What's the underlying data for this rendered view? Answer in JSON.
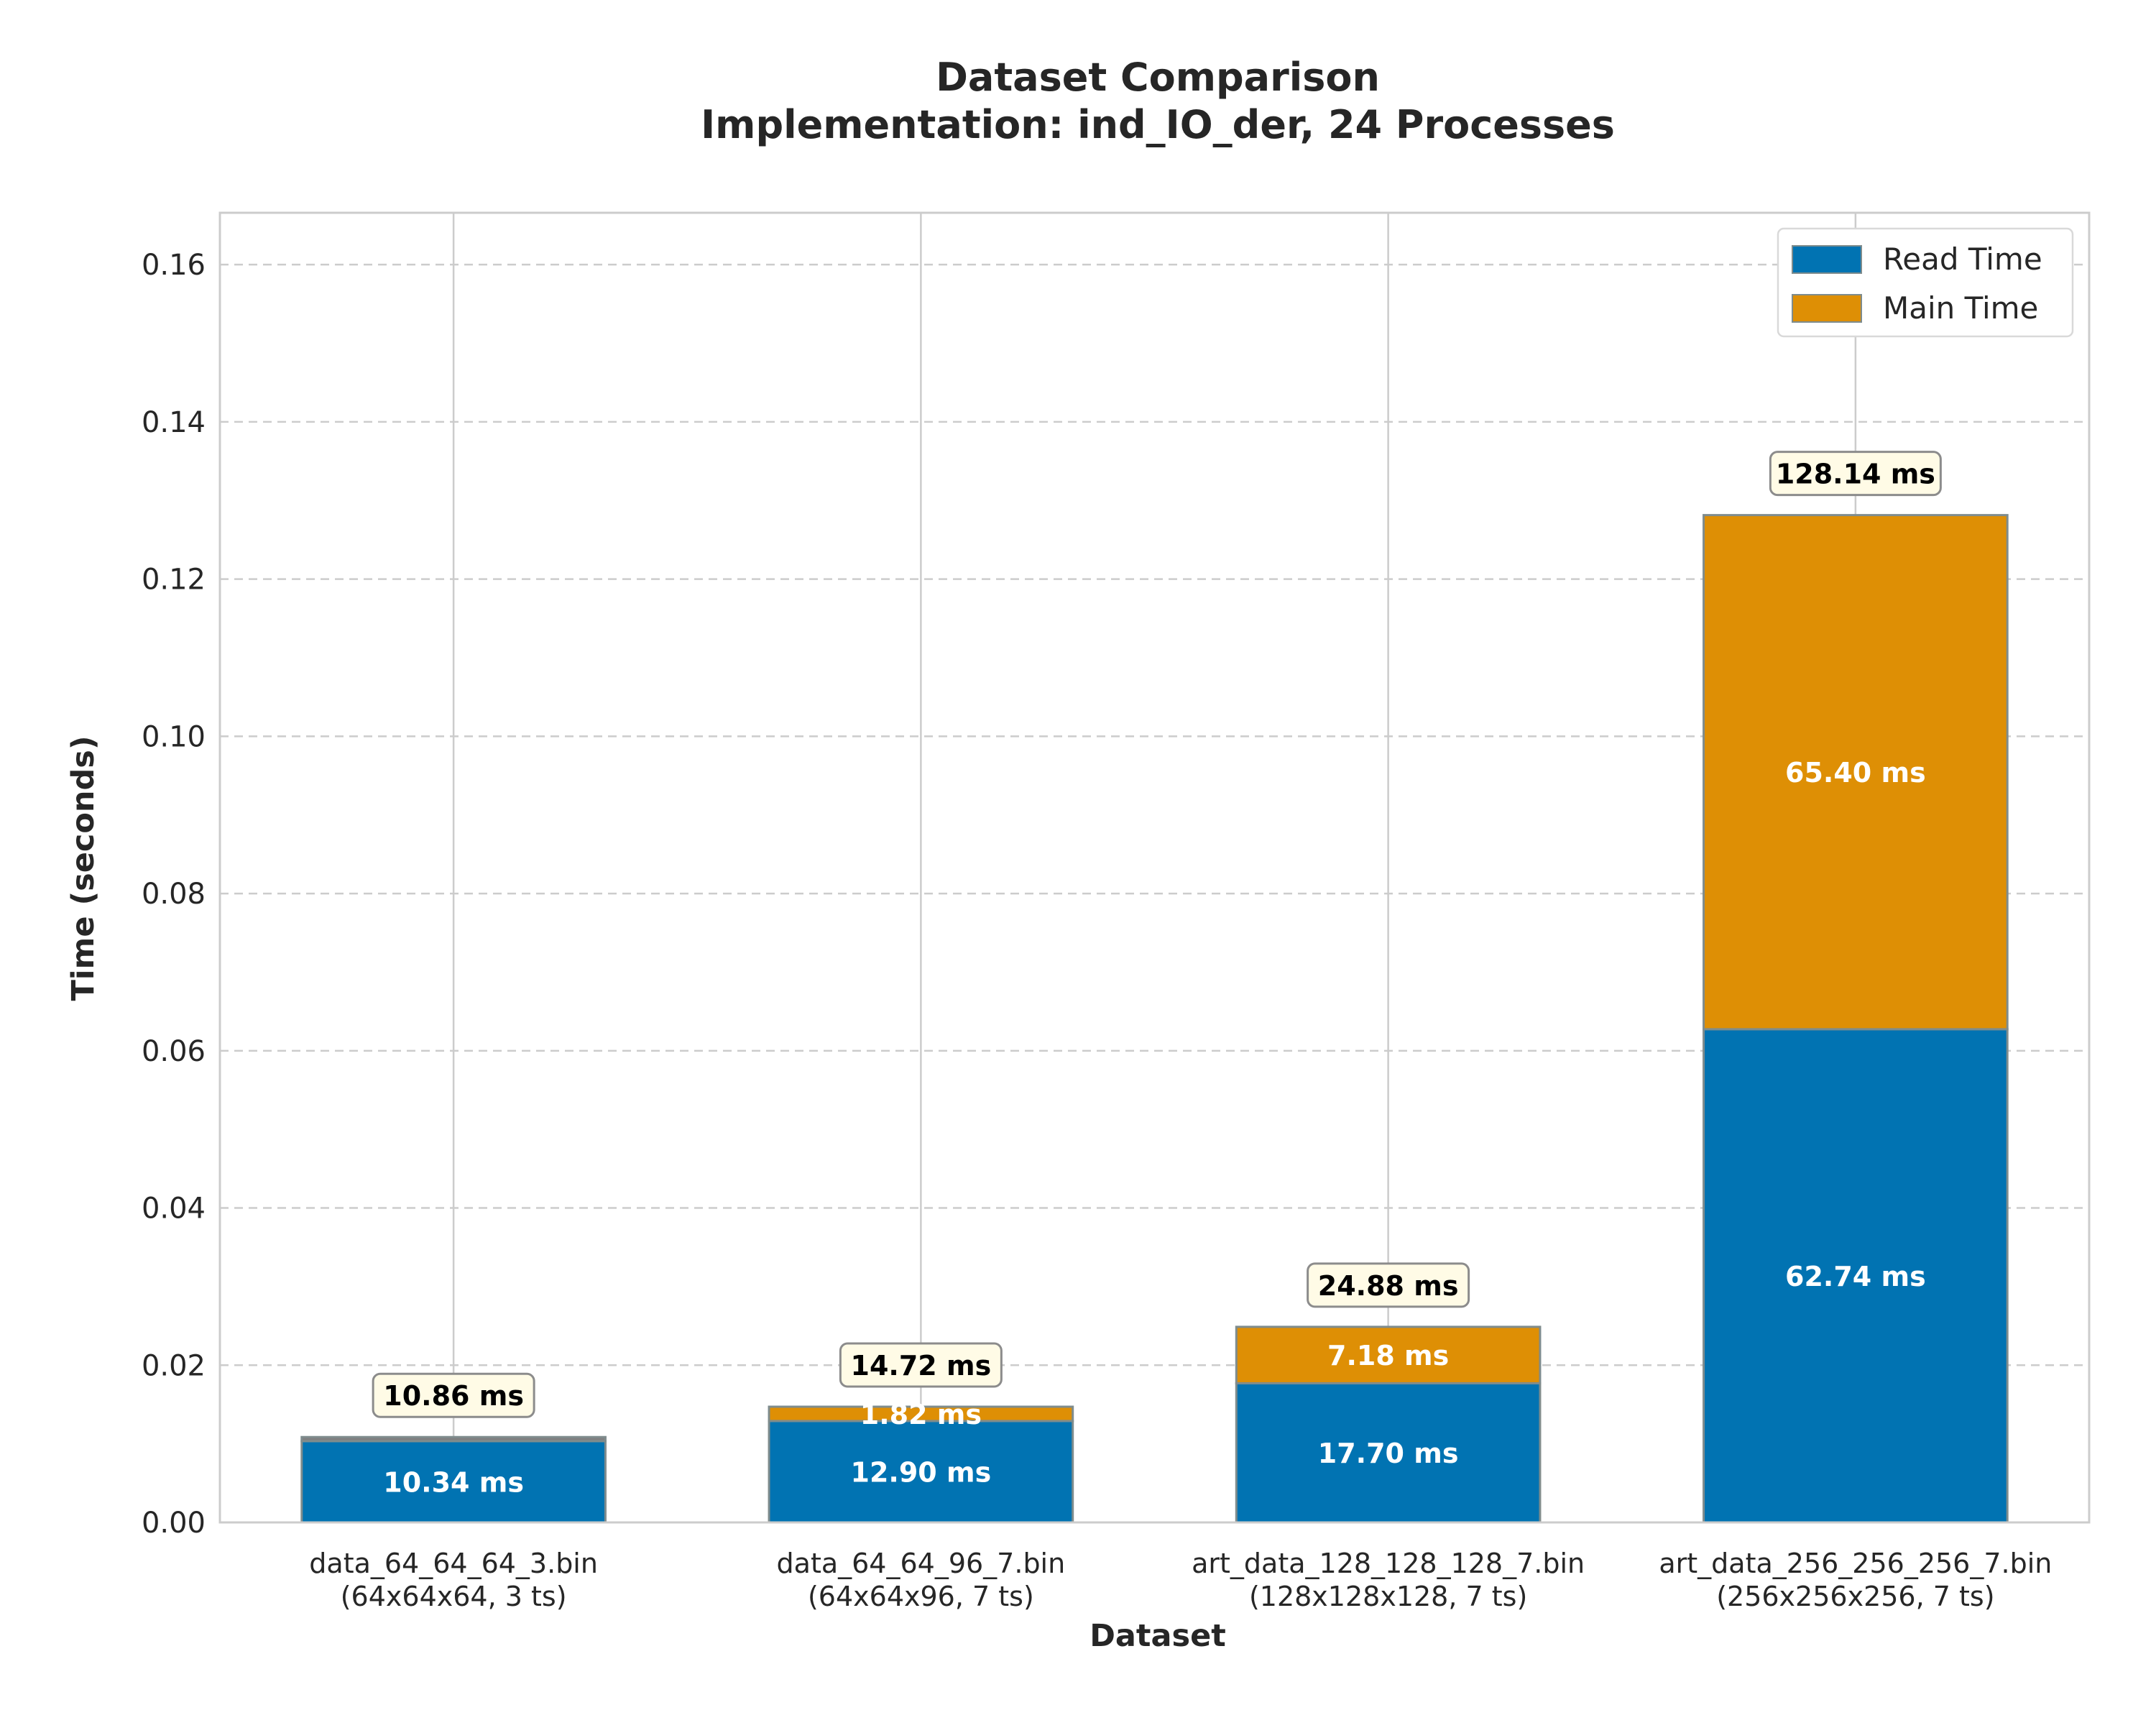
{
  "chart_data": {
    "type": "bar",
    "stacked": true,
    "title": "Dataset Comparison",
    "subtitle": "Implementation: ind_IO_der, 24 Processes",
    "xlabel": "Dataset",
    "ylabel": "Time (seconds)",
    "ylim": [
      0,
      0.1666
    ],
    "yticks": [
      "0.00",
      "0.02",
      "0.04",
      "0.06",
      "0.08",
      "0.10",
      "0.12",
      "0.14",
      "0.16"
    ],
    "ytick_values": [
      0,
      0.02,
      0.04,
      0.06,
      0.08,
      0.1,
      0.12,
      0.14,
      0.16
    ],
    "grid": true,
    "legend_position": "top-right",
    "categories": [
      [
        "data_64_64_64_3.bin",
        "(64x64x64, 3 ts)"
      ],
      [
        "data_64_64_96_7.bin",
        "(64x64x96, 7 ts)"
      ],
      [
        "art_data_128_128_128_7.bin",
        "(128x128x128, 7 ts)"
      ],
      [
        "art_data_256_256_256_7.bin",
        "(256x256x256, 7 ts)"
      ]
    ],
    "series": [
      {
        "name": "Read Time",
        "color": "#0173b2",
        "values": [
          0.01034,
          0.0129,
          0.0177,
          0.06274
        ],
        "labels": [
          "10.34 ms",
          "12.90 ms",
          "17.70 ms",
          "62.74 ms"
        ]
      },
      {
        "name": "Main Time",
        "color": "#de8f05",
        "values": [
          0.00052,
          0.00182,
          0.00718,
          0.0654
        ],
        "labels": [
          "",
          "1.82 ms",
          "7.18 ms",
          "65.40 ms"
        ]
      }
    ],
    "totals": [
      "10.86 ms",
      "14.72 ms",
      "24.88 ms",
      "128.14 ms"
    ]
  }
}
